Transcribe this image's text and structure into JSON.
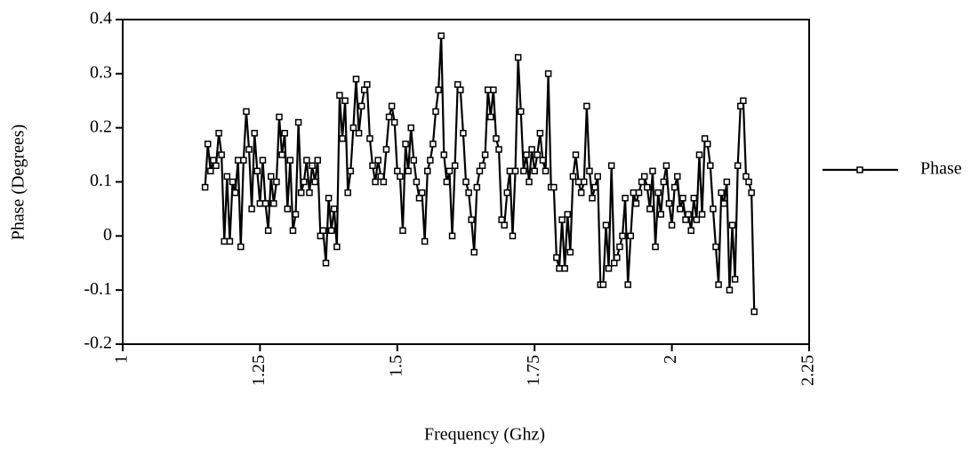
{
  "chart_data": {
    "type": "line",
    "xlabel": "Frequency (Ghz)",
    "ylabel": "Phase (Degrees)",
    "xlim": [
      1,
      2.25
    ],
    "xticks": [
      1,
      1.25,
      1.5,
      1.75,
      2,
      2.25
    ],
    "ylim": [
      -0.2,
      0.4
    ],
    "yticks": [
      -0.2,
      -0.1,
      0,
      0.1,
      0.2,
      0.3,
      0.4
    ],
    "legend": "right",
    "x": [
      1.15,
      1.155,
      1.16,
      1.165,
      1.17,
      1.175,
      1.18,
      1.185,
      1.19,
      1.195,
      1.2,
      1.205,
      1.21,
      1.215,
      1.22,
      1.225,
      1.23,
      1.235,
      1.24,
      1.245,
      1.25,
      1.255,
      1.26,
      1.265,
      1.27,
      1.275,
      1.28,
      1.285,
      1.29,
      1.295,
      1.3,
      1.305,
      1.31,
      1.315,
      1.32,
      1.325,
      1.33,
      1.335,
      1.34,
      1.345,
      1.35,
      1.355,
      1.36,
      1.365,
      1.37,
      1.375,
      1.38,
      1.385,
      1.39,
      1.395,
      1.4,
      1.405,
      1.41,
      1.415,
      1.42,
      1.425,
      1.43,
      1.435,
      1.44,
      1.445,
      1.45,
      1.455,
      1.46,
      1.465,
      1.47,
      1.475,
      1.48,
      1.485,
      1.49,
      1.495,
      1.5,
      1.505,
      1.51,
      1.515,
      1.52,
      1.525,
      1.53,
      1.535,
      1.54,
      1.545,
      1.55,
      1.555,
      1.56,
      1.565,
      1.57,
      1.575,
      1.58,
      1.585,
      1.59,
      1.595,
      1.6,
      1.605,
      1.61,
      1.615,
      1.62,
      1.625,
      1.63,
      1.635,
      1.64,
      1.645,
      1.65,
      1.655,
      1.66,
      1.665,
      1.67,
      1.675,
      1.68,
      1.685,
      1.69,
      1.695,
      1.7,
      1.705,
      1.71,
      1.715,
      1.72,
      1.725,
      1.73,
      1.735,
      1.74,
      1.745,
      1.75,
      1.755,
      1.76,
      1.765,
      1.77,
      1.775,
      1.78,
      1.785,
      1.79,
      1.795,
      1.8,
      1.805,
      1.81,
      1.815,
      1.82,
      1.825,
      1.83,
      1.835,
      1.84,
      1.845,
      1.85,
      1.855,
      1.86,
      1.865,
      1.87,
      1.875,
      1.88,
      1.885,
      1.89,
      1.895,
      1.9,
      1.905,
      1.91,
      1.915,
      1.92,
      1.925,
      1.93,
      1.935,
      1.94,
      1.945,
      1.95,
      1.955,
      1.96,
      1.965,
      1.97,
      1.975,
      1.98,
      1.985,
      1.99,
      1.995,
      2,
      2.005,
      2.01,
      2.015,
      2.02,
      2.025,
      2.03,
      2.035,
      2.04,
      2.045,
      2.05,
      2.055,
      2.06,
      2.065,
      2.07,
      2.075,
      2.08,
      2.085,
      2.09,
      2.095,
      2.1,
      2.105,
      2.11,
      2.115,
      2.12,
      2.125,
      2.13,
      2.135,
      2.14,
      2.145,
      2.15
    ],
    "series": [
      {
        "name": "Phase",
        "color": "#000000",
        "values": [
          0.09,
          0.17,
          0.12,
          0.14,
          0.13,
          0.19,
          0.15,
          -0.01,
          0.11,
          -0.01,
          0.1,
          0.08,
          0.14,
          -0.02,
          0.14,
          0.23,
          0.16,
          0.05,
          0.19,
          0.12,
          0.06,
          0.14,
          0.06,
          0.01,
          0.11,
          0.06,
          0.1,
          0.22,
          0.15,
          0.19,
          0.05,
          0.14,
          0.01,
          0.04,
          0.21,
          0.08,
          0.1,
          0.14,
          0.08,
          0.13,
          0.1,
          0.14,
          0.0,
          0.01,
          -0.05,
          0.07,
          0.01,
          0.05,
          -0.02,
          0.26,
          0.18,
          0.25,
          0.08,
          0.12,
          0.2,
          0.29,
          0.19,
          0.24,
          0.27,
          0.28,
          0.18,
          0.13,
          0.1,
          0.14,
          0.11,
          0.1,
          0.16,
          0.22,
          0.24,
          0.21,
          0.12,
          0.11,
          0.01,
          0.17,
          0.12,
          0.2,
          0.14,
          0.1,
          0.07,
          0.08,
          -0.01,
          0.12,
          0.14,
          0.17,
          0.23,
          0.27,
          0.37,
          0.15,
          0.1,
          0.12,
          0.0,
          0.13,
          0.28,
          0.27,
          0.19,
          0.1,
          0.08,
          0.03,
          -0.03,
          0.09,
          0.12,
          0.13,
          0.15,
          0.27,
          0.22,
          0.27,
          0.18,
          0.16,
          0.03,
          0.02,
          0.08,
          0.12,
          0.0,
          0.12,
          0.33,
          0.23,
          0.12,
          0.15,
          0.1,
          0.16,
          0.12,
          0.15,
          0.19,
          0.14,
          0.12,
          0.3,
          0.09,
          0.09,
          -0.04,
          -0.06,
          0.03,
          -0.06,
          0.04,
          -0.03,
          0.11,
          0.15,
          0.1,
          0.08,
          0.1,
          0.24,
          0.12,
          0.07,
          0.09,
          0.11,
          -0.09,
          -0.09,
          0.02,
          -0.06,
          0.13,
          -0.05,
          -0.04,
          -0.02,
          0.0,
          0.07,
          -0.09,
          0.0,
          0.08,
          0.06,
          0.08,
          0.1,
          0.11,
          0.09,
          0.05,
          0.12,
          -0.02,
          0.08,
          0.04,
          0.1,
          0.13,
          0.06,
          0.02,
          0.09,
          0.11,
          0.05,
          0.07,
          0.03,
          0.04,
          0.01,
          0.07,
          0.03,
          0.15,
          0.04,
          0.18,
          0.17,
          0.13,
          0.05,
          -0.02,
          -0.09,
          0.08,
          0.06,
          0.1,
          -0.1,
          0.02,
          -0.08,
          0.13,
          0.24,
          0.25,
          0.11,
          0.1,
          0.08,
          -0.14
        ]
      }
    ]
  }
}
